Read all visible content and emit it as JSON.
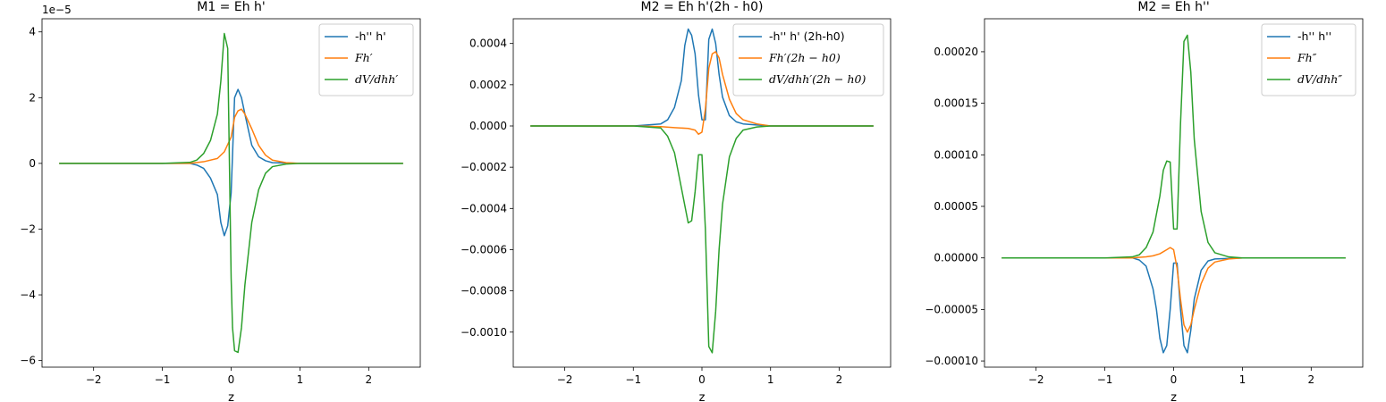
{
  "chart_data": [
    {
      "type": "line",
      "title": "M1 = Eh h'",
      "xlabel": "z",
      "ylabel": "",
      "xlim": [
        -2.75,
        2.75
      ],
      "ylim": [
        -6.2,
        4.4
      ],
      "y_offset_label": "1e−5",
      "xticks": [
        -2,
        -1,
        0,
        1,
        2
      ],
      "xtick_labels": [
        "−2",
        "−1",
        "0",
        "1",
        "2"
      ],
      "yticks": [
        -6,
        -4,
        -2,
        0,
        2,
        4
      ],
      "ytick_labels": [
        "−6",
        "−4",
        "−2",
        "0",
        "2",
        "4"
      ],
      "legend_position": "top-right",
      "series": [
        {
          "name": "-h'' h'",
          "color": "#1f77b4",
          "x": [
            -2.5,
            -1.0,
            -0.6,
            -0.5,
            -0.4,
            -0.3,
            -0.2,
            -0.15,
            -0.1,
            -0.05,
            0.0,
            0.05,
            0.1,
            0.15,
            0.2,
            0.3,
            0.4,
            0.5,
            0.6,
            1.0,
            2.5
          ],
          "y": [
            0,
            0,
            0,
            -0.05,
            -0.15,
            -0.45,
            -0.95,
            -1.8,
            -2.2,
            -1.9,
            -0.9,
            2.0,
            2.25,
            2.0,
            1.5,
            0.55,
            0.2,
            0.08,
            0.02,
            0,
            0
          ]
        },
        {
          "name": "Fh′",
          "color": "#ff7f0e",
          "x": [
            -2.5,
            -1.0,
            -0.6,
            -0.4,
            -0.2,
            -0.1,
            0.0,
            0.05,
            0.1,
            0.15,
            0.2,
            0.3,
            0.4,
            0.5,
            0.6,
            0.8,
            1.0,
            2.5
          ],
          "y": [
            0,
            0,
            0,
            0.05,
            0.15,
            0.35,
            0.8,
            1.4,
            1.6,
            1.65,
            1.5,
            1.05,
            0.55,
            0.25,
            0.1,
            0.02,
            0,
            0
          ]
        },
        {
          "name": "dV/dhh′",
          "color": "#2ca02c",
          "x": [
            -2.5,
            -1.0,
            -0.6,
            -0.5,
            -0.4,
            -0.3,
            -0.2,
            -0.15,
            -0.1,
            -0.05,
            0.0,
            0.02,
            0.05,
            0.1,
            0.15,
            0.2,
            0.3,
            0.4,
            0.5,
            0.6,
            0.8,
            1.0,
            2.5
          ],
          "y": [
            0,
            0,
            0.03,
            0.1,
            0.3,
            0.7,
            1.5,
            2.5,
            3.95,
            3.5,
            -3.5,
            -5.0,
            -5.7,
            -5.75,
            -5.0,
            -3.7,
            -1.8,
            -0.8,
            -0.3,
            -0.1,
            -0.02,
            0,
            0
          ]
        }
      ]
    },
    {
      "type": "line",
      "title": "M2 = Eh h'(2h - h0)",
      "xlabel": "z",
      "ylabel": "",
      "xlim": [
        -2.75,
        2.75
      ],
      "ylim": [
        -0.00117,
        0.00052
      ],
      "y_offset_label": "",
      "xticks": [
        -2,
        -1,
        0,
        1,
        2
      ],
      "xtick_labels": [
        "−2",
        "−1",
        "0",
        "1",
        "2"
      ],
      "yticks": [
        -0.001,
        -0.0008,
        -0.0006,
        -0.0004,
        -0.0002,
        0,
        0.0002,
        0.0004
      ],
      "ytick_labels": [
        "−0.0010",
        "−0.0008",
        "−0.0006",
        "−0.0004",
        "−0.0002",
        "0.0000",
        "0.0002",
        "0.0004"
      ],
      "legend_position": "top-right",
      "series": [
        {
          "name": "-h'' h' (2h-h0)",
          "color": "#1f77b4",
          "x": [
            -2.5,
            -1.0,
            -0.6,
            -0.5,
            -0.4,
            -0.3,
            -0.25,
            -0.2,
            -0.15,
            -0.1,
            -0.05,
            0.0,
            0.05,
            0.1,
            0.15,
            0.2,
            0.25,
            0.3,
            0.4,
            0.5,
            0.6,
            1.0,
            2.5
          ],
          "y": [
            0,
            0,
            1e-05,
            3e-05,
            9e-05,
            0.00022,
            0.00039,
            0.00047,
            0.00044,
            0.00035,
            0.00015,
            3e-05,
            3e-05,
            0.00042,
            0.00047,
            0.0004,
            0.00025,
            0.00014,
            5e-05,
            2e-05,
            1e-05,
            0,
            0
          ]
        },
        {
          "name": "Fh′(2h − h0)",
          "color": "#ff7f0e",
          "x": [
            -2.5,
            -1.0,
            -0.6,
            -0.4,
            -0.2,
            -0.1,
            -0.05,
            0.0,
            0.05,
            0.1,
            0.15,
            0.2,
            0.25,
            0.3,
            0.4,
            0.5,
            0.6,
            0.8,
            1.0,
            2.5
          ],
          "y": [
            0,
            0,
            -3e-06,
            -8e-06,
            -1.2e-05,
            -2e-05,
            -4e-05,
            -3e-05,
            8e-05,
            0.00028,
            0.00035,
            0.00036,
            0.00033,
            0.00025,
            0.00013,
            6e-05,
            3e-05,
            1e-05,
            0,
            0
          ]
        },
        {
          "name": "dV/dhh′(2h − h0)",
          "color": "#2ca02c",
          "x": [
            -2.5,
            -1.0,
            -0.6,
            -0.5,
            -0.4,
            -0.3,
            -0.2,
            -0.15,
            -0.1,
            -0.05,
            0.0,
            0.05,
            0.1,
            0.15,
            0.2,
            0.25,
            0.3,
            0.4,
            0.5,
            0.6,
            0.8,
            1.0,
            2.5
          ],
          "y": [
            0,
            0,
            -1e-05,
            -5e-05,
            -0.00013,
            -0.0003,
            -0.00047,
            -0.00046,
            -0.00032,
            -0.00014,
            -0.00014,
            -0.0005,
            -0.00107,
            -0.0011,
            -0.0009,
            -0.0006,
            -0.00038,
            -0.00015,
            -6e-05,
            -2e-05,
            -5e-06,
            0,
            0
          ]
        }
      ]
    },
    {
      "type": "line",
      "title": "M2 = Eh h''",
      "xlabel": "z",
      "ylabel": "",
      "xlim": [
        -2.75,
        2.75
      ],
      "ylim": [
        -0.000106,
        0.000232
      ],
      "y_offset_label": "",
      "xticks": [
        -2,
        -1,
        0,
        1,
        2
      ],
      "xtick_labels": [
        "−2",
        "−1",
        "0",
        "1",
        "2"
      ],
      "yticks": [
        -0.0001,
        -5e-05,
        0,
        5e-05,
        0.0001,
        0.00015,
        0.0002
      ],
      "ytick_labels": [
        "−0.00010",
        "−0.00005",
        "0.00000",
        "0.00005",
        "0.00010",
        "0.00015",
        "0.00020"
      ],
      "legend_position": "top-right",
      "series": [
        {
          "name": "-h'' h''",
          "color": "#1f77b4",
          "x": [
            -2.5,
            -1.0,
            -0.6,
            -0.5,
            -0.4,
            -0.3,
            -0.25,
            -0.2,
            -0.15,
            -0.1,
            -0.05,
            0.0,
            0.05,
            0.1,
            0.15,
            0.2,
            0.25,
            0.3,
            0.4,
            0.5,
            0.6,
            1.0,
            2.5
          ],
          "y": [
            0,
            0,
            0,
            -2e-06,
            -8e-06,
            -3e-05,
            -5e-05,
            -7.8e-05,
            -9.2e-05,
            -8.5e-05,
            -5e-05,
            -5e-06,
            -5e-06,
            -5e-05,
            -8.5e-05,
            -9.2e-05,
            -7e-05,
            -4e-05,
            -1.2e-05,
            -3e-06,
            -1e-06,
            0,
            0
          ]
        },
        {
          "name": "Fh″",
          "color": "#ff7f0e",
          "x": [
            -2.5,
            -1.0,
            -0.6,
            -0.4,
            -0.3,
            -0.2,
            -0.1,
            -0.05,
            0.0,
            0.05,
            0.1,
            0.15,
            0.2,
            0.25,
            0.3,
            0.4,
            0.5,
            0.6,
            0.8,
            1.0,
            2.5
          ],
          "y": [
            0,
            0,
            0,
            1e-06,
            2e-06,
            4e-06,
            8e-06,
            1e-05,
            8e-06,
            -1e-05,
            -4e-05,
            -6.5e-05,
            -7.2e-05,
            -6.5e-05,
            -5e-05,
            -2.5e-05,
            -1e-05,
            -4e-06,
            -1e-06,
            0,
            0
          ]
        },
        {
          "name": "dV/dhh″",
          "color": "#2ca02c",
          "x": [
            -2.5,
            -1.0,
            -0.6,
            -0.5,
            -0.4,
            -0.3,
            -0.2,
            -0.15,
            -0.1,
            -0.05,
            0.0,
            0.05,
            0.1,
            0.15,
            0.2,
            0.25,
            0.3,
            0.4,
            0.5,
            0.6,
            0.8,
            1.0,
            2.5
          ],
          "y": [
            0,
            0,
            1e-06,
            3e-06,
            1e-05,
            2.5e-05,
            6e-05,
            8.5e-05,
            9.4e-05,
            9.3e-05,
            2.8e-05,
            2.8e-05,
            0.00013,
            0.00021,
            0.000216,
            0.00018,
            0.000115,
            4.5e-05,
            1.5e-05,
            5e-06,
            1e-06,
            0,
            0
          ]
        }
      ]
    }
  ]
}
